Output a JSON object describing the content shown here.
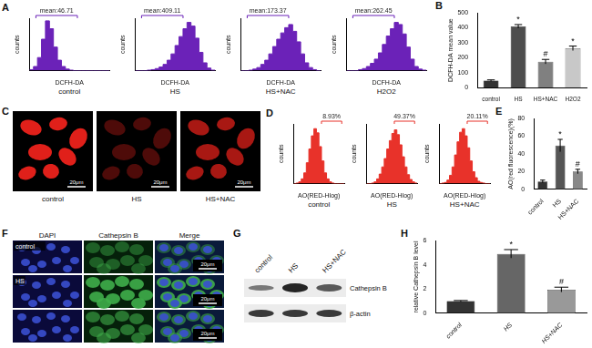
{
  "chart_data": [
    {
      "panel": "A",
      "type": "histogram",
      "condition": "control",
      "x_label": "DCFH-DA",
      "y_label": "counts",
      "annotation": "mean:46.71",
      "bins": [
        0,
        1,
        2,
        3,
        4,
        5,
        6,
        7,
        8,
        9,
        10,
        11,
        12,
        13,
        14,
        15,
        16,
        17,
        18,
        19,
        20
      ],
      "counts": [
        2,
        8,
        25,
        60,
        95,
        80,
        45,
        20,
        8,
        3,
        1,
        0,
        0,
        0,
        0,
        0,
        0,
        0,
        0,
        0
      ],
      "color": "#6b22b8",
      "xlim": [
        0,
        20
      ],
      "ylim": [
        0,
        100
      ],
      "tick_labels": false,
      "grid": false
    },
    {
      "type": "histogram",
      "condition": "HS",
      "x_label": "DCFH-DA",
      "y_label": "counts",
      "annotation": "mean:409.11",
      "bins": [
        0,
        1,
        2,
        3,
        4,
        5,
        6,
        7,
        8,
        9,
        10,
        11,
        12,
        13,
        14,
        15,
        16,
        17,
        18,
        19,
        20
      ],
      "counts": [
        0,
        0,
        0,
        1,
        2,
        4,
        7,
        12,
        20,
        32,
        48,
        65,
        80,
        92,
        85,
        62,
        35,
        15,
        5,
        1
      ],
      "color": "#6b22b8",
      "xlim": [
        0,
        20
      ],
      "ylim": [
        0,
        100
      ],
      "tick_labels": false,
      "grid": false
    },
    {
      "type": "histogram",
      "condition": "HS+NAC",
      "x_label": "DCFH-DA",
      "y_label": "counts",
      "annotation": "mean:173.37",
      "bins": [
        0,
        1,
        2,
        3,
        4,
        5,
        6,
        7,
        8,
        9,
        10,
        11,
        12,
        13,
        14,
        15,
        16,
        17,
        18,
        19,
        20
      ],
      "counts": [
        0,
        0,
        1,
        3,
        6,
        12,
        20,
        32,
        46,
        60,
        72,
        82,
        88,
        75,
        55,
        32,
        15,
        6,
        2,
        0
      ],
      "color": "#6b22b8",
      "xlim": [
        0,
        20
      ],
      "ylim": [
        0,
        100
      ],
      "tick_labels": false,
      "grid": false
    },
    {
      "type": "histogram",
      "condition": "H2O2",
      "x_label": "DCFH-DA",
      "y_label": "counts",
      "annotation": "mean:262.45",
      "bins": [
        0,
        1,
        2,
        3,
        4,
        5,
        6,
        7,
        8,
        9,
        10,
        11,
        12,
        13,
        14,
        15,
        16,
        17,
        18,
        19,
        20
      ],
      "counts": [
        0,
        0,
        0,
        2,
        4,
        8,
        14,
        22,
        34,
        50,
        66,
        80,
        92,
        88,
        70,
        45,
        22,
        8,
        3,
        1
      ],
      "color": "#6b22b8",
      "xlim": [
        0,
        20
      ],
      "ylim": [
        0,
        100
      ],
      "tick_labels": false,
      "grid": false
    },
    {
      "panel": "B",
      "type": "bar",
      "y_label": "DCFH-DA mean value",
      "categories": [
        "control",
        "HS",
        "HS+NAC",
        "H2O2"
      ],
      "values": [
        46.71,
        409.11,
        173.37,
        262.45
      ],
      "errors": [
        5,
        12,
        15,
        15
      ],
      "significance": [
        null,
        "*",
        "#",
        "*"
      ],
      "colors": [
        "#333333",
        "#4d4d4d",
        "#808080",
        "#c8c8c8"
      ],
      "ylim": [
        0,
        500
      ],
      "yticks": [
        0,
        100,
        200,
        300,
        400,
        500
      ],
      "grid": false
    },
    {
      "panel": "D",
      "type": "histogram",
      "condition": "control",
      "x_label": "AO(RED-Hlog)",
      "y_label": "counts",
      "annotation": "8.93%",
      "bins": [
        0,
        1,
        2,
        3,
        4,
        5,
        6,
        7,
        8,
        9,
        10,
        11,
        12,
        13,
        14,
        15,
        16,
        17,
        18,
        19,
        20
      ],
      "counts": [
        0,
        1,
        3,
        8,
        18,
        35,
        58,
        80,
        92,
        85,
        62,
        38,
        18,
        8,
        3,
        1,
        0,
        0,
        0,
        0
      ],
      "color": "#e8322a",
      "xlim": [
        0,
        20
      ],
      "ylim": [
        0,
        100
      ],
      "tick_labels": false,
      "grid": false
    },
    {
      "type": "histogram",
      "condition": "HS",
      "x_label": "AO(RED-Hlog)",
      "y_label": "counts",
      "annotation": "49.37%",
      "bins": [
        0,
        1,
        2,
        3,
        4,
        5,
        6,
        7,
        8,
        9,
        10,
        11,
        12,
        13,
        14,
        15,
        16,
        17,
        18,
        19,
        20
      ],
      "counts": [
        0,
        0,
        1,
        3,
        8,
        16,
        28,
        42,
        58,
        72,
        84,
        90,
        82,
        65,
        45,
        28,
        15,
        7,
        3,
        1
      ],
      "color": "#e8322a",
      "xlim": [
        0,
        20
      ],
      "ylim": [
        0,
        100
      ],
      "tick_labels": false,
      "grid": false
    },
    {
      "type": "histogram",
      "condition": "HS+NAC",
      "x_label": "AO(RED-Hlog)",
      "y_label": "counts",
      "annotation": "20.11%",
      "bins": [
        0,
        1,
        2,
        3,
        4,
        5,
        6,
        7,
        8,
        9,
        10,
        11,
        12,
        13,
        14,
        15,
        16,
        17,
        18,
        19,
        20
      ],
      "counts": [
        0,
        1,
        2,
        6,
        14,
        28,
        48,
        70,
        86,
        92,
        80,
        60,
        38,
        20,
        10,
        4,
        2,
        1,
        0,
        0
      ],
      "color": "#e8322a",
      "xlim": [
        0,
        20
      ],
      "ylim": [
        0,
        100
      ],
      "tick_labels": false,
      "grid": false
    },
    {
      "panel": "E",
      "type": "bar",
      "y_label": "AO(red fluorescence)(%)",
      "categories": [
        "control",
        "HS",
        "HS+NAC"
      ],
      "values": [
        8.93,
        49.37,
        20.11
      ],
      "errors": [
        1.5,
        7,
        2.5
      ],
      "significance": [
        null,
        "*",
        "#"
      ],
      "colors": [
        "#333333",
        "#555555",
        "#888888"
      ],
      "ylim": [
        0,
        80
      ],
      "yticks": [
        0,
        20,
        40,
        60,
        80
      ],
      "grid": false
    },
    {
      "panel": "H",
      "type": "bar",
      "y_label": "relative Cathepsin B level",
      "categories": [
        "control",
        "HS",
        "HS+NAC"
      ],
      "values": [
        1,
        4.9,
        1.95
      ],
      "errors": [
        0.05,
        0.35,
        0.2
      ],
      "significance": [
        null,
        "*",
        "#"
      ],
      "colors": [
        "#333333",
        "#666666",
        "#999999"
      ],
      "ylim": [
        0,
        6
      ],
      "yticks": [
        0,
        2,
        4,
        6
      ],
      "grid": false
    }
  ],
  "images": [
    {
      "panel": "C",
      "type": "micrograph",
      "labels": [
        "control",
        "HS",
        "HS+NAC"
      ],
      "scale_bar": "20μm"
    },
    {
      "panel": "F",
      "type": "micrograph_grid",
      "columns": [
        "DAPI",
        "Cathepsin B",
        "Merge"
      ],
      "rows": [
        "control",
        "HS",
        null
      ],
      "scale_bar": "20μm"
    },
    {
      "panel": "G",
      "type": "western_blot",
      "lanes": [
        "control",
        "HS",
        "HS+NAC"
      ],
      "bands": [
        "Cathepsin B",
        "β-actin"
      ]
    }
  ]
}
